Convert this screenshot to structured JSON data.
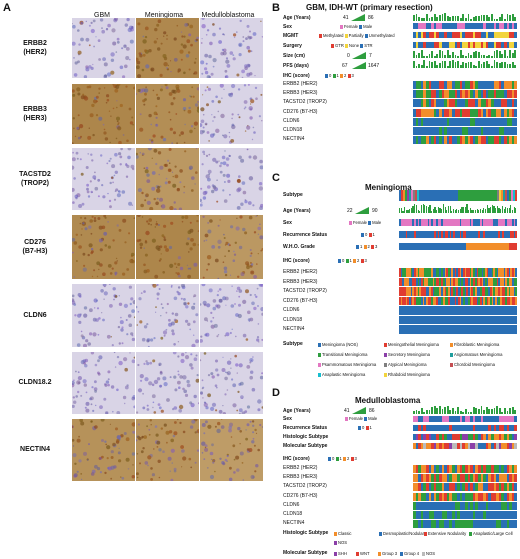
{
  "panel_A": {
    "letter": "A",
    "columns": [
      "GBM",
      "Meningioma",
      "Medulloblastoma"
    ],
    "rows": [
      {
        "line1": "ERBB2",
        "line2": "(HER2)"
      },
      {
        "line1": "ERBB3",
        "line2": "(HER3)"
      },
      {
        "line1": "TACSTD2",
        "line2": "(TROP2)"
      },
      {
        "line1": "CD276",
        "line2": "(B7-H3)"
      },
      {
        "line1": "CLDN6",
        "line2": ""
      },
      {
        "line1": "CLDN18.2",
        "line2": ""
      },
      {
        "line1": "NECTIN4",
        "line2": ""
      }
    ]
  },
  "panel_B": {
    "letter": "B",
    "title": "GBM, IDH-WT (primary resection)",
    "age": {
      "label": "Age (Years)",
      "min": "41",
      "max": "86"
    },
    "sex": {
      "label": "Sex",
      "female": "Female",
      "male": "Male"
    },
    "mgmt": {
      "label": "MGMT",
      "opts": [
        "Methylated",
        "Partially",
        "Unmethylated"
      ]
    },
    "surgery": {
      "label": "Surgery",
      "opts": [
        "GTR",
        "None",
        "STR"
      ]
    },
    "size": {
      "label": "Size (cm)",
      "min": "0",
      "max": "7"
    },
    "pfs": {
      "label": "PFS (days)",
      "min": "67",
      "max": "1647"
    },
    "ihc": {
      "label": "IHC (score)",
      "opts": [
        "0",
        "1",
        "2",
        "3"
      ]
    },
    "genes": [
      "ERBB2 (HER2)",
      "ERBB3 (HER3)",
      "TACSTD2 (TROP2)",
      "CD276 (B7-H3)",
      "CLDN6",
      "CLDN18",
      "NECTIN4"
    ]
  },
  "panel_C": {
    "letter": "C",
    "title": "Meningioma",
    "subtype_label": "Subtype",
    "age": {
      "label": "Age (Years)",
      "min": "22",
      "max": "90"
    },
    "sex": {
      "label": "Sex",
      "female": "Female",
      "male": "Male"
    },
    "recurrence": {
      "label": "Recurrence Status",
      "opts": [
        "0",
        "1"
      ]
    },
    "who": {
      "label": "W.H.O. Grade",
      "opts": [
        "1",
        "2",
        "3"
      ]
    },
    "ihc": {
      "label": "IHC (score)",
      "opts": [
        "0",
        "1",
        "2",
        "3"
      ]
    },
    "genes": [
      "ERBB2 (HER2)",
      "ERBB3 (HER3)",
      "TACSTD2 (TROP2)",
      "CD276 (B7-H3)",
      "CLDN6",
      "CLDN18",
      "NECTIN4"
    ],
    "legend_title": "Subtype",
    "legend": [
      {
        "name": "Meningioma (NOS)",
        "color": "#2a6fb5"
      },
      {
        "name": "Meningothelial Meningioma",
        "color": "#e03c31"
      },
      {
        "name": "Fibroblastic Meningioma",
        "color": "#f28e2b"
      },
      {
        "name": "Transitional Meningioma",
        "color": "#2e9e3e"
      },
      {
        "name": "Secretory Meningioma",
        "color": "#8b3fa8"
      },
      {
        "name": "Angiomatous Meningioma",
        "color": "#1f9e9e"
      },
      {
        "name": "Psammomatous Meningioma",
        "color": "#e377c2"
      },
      {
        "name": "Atypical Meningioma",
        "color": "#7f7f7f"
      },
      {
        "name": "Chordoid Meningioma",
        "color": "#c44e52"
      },
      {
        "name": "Anaplastic Meningioma",
        "color": "#17becf"
      },
      {
        "name": "Rhabdoid Meningioma",
        "color": "#f2d43d"
      }
    ]
  },
  "panel_D": {
    "letter": "D",
    "title": "Medulloblastoma",
    "age": {
      "label": "Age (Years)",
      "min": "41",
      "max": "86"
    },
    "sex": {
      "label": "Sex",
      "female": "Female",
      "male": "Male"
    },
    "recurrence": {
      "label": "Recurrence Status",
      "opts": [
        "0",
        "1"
      ]
    },
    "histologic": {
      "label": "Histologic Subtype"
    },
    "molecular": {
      "label": "Molecular Subtype"
    },
    "ihc": {
      "label": "IHC (score)",
      "opts": [
        "0",
        "1",
        "2",
        "3"
      ]
    },
    "genes": [
      "ERBB2 (HER2)",
      "ERBB3 (HER3)",
      "TACSTD2 (TROP2)",
      "CD276 (B7-H3)",
      "CLDN6",
      "CLDN18",
      "NECTIN4"
    ],
    "hist_legend_title": "Histologic Subtype",
    "hist_legend": [
      {
        "name": "Classic",
        "color": "#f28e2b"
      },
      {
        "name": "Desmoplastic/Nodular",
        "color": "#2a6fb5"
      },
      {
        "name": "Extensive Nodularity",
        "color": "#e03c31"
      },
      {
        "name": "Anaplastic/Large Cell",
        "color": "#2e9e3e"
      },
      {
        "name": "NOS",
        "color": "#8b3fa8"
      }
    ],
    "mol_legend_title": "Molecular Subtype",
    "mol_legend": [
      {
        "name": "SHH",
        "color": "#8b3fa8"
      },
      {
        "name": "WNT",
        "color": "#e03c31"
      },
      {
        "name": "Group 3",
        "color": "#f28e2b"
      },
      {
        "name": "Group 4",
        "color": "#2a6fb5"
      },
      {
        "name": "NOS",
        "color": "#bbbbbb"
      }
    ]
  },
  "colors": {
    "age_green": "#2e9e3e",
    "female": "#e377c2",
    "male": "#2a6fb5",
    "methylated": "#e03c31",
    "partially": "#f2d43d",
    "unmethylated": "#2a6fb5",
    "gtr": "#e03c31",
    "none": "#f2d43d",
    "str": "#2a6fb5",
    "ihc_0": "#2a6fb5",
    "ihc_1": "#2e9e3e",
    "ihc_2": "#f28e2b",
    "ihc_3": "#e03c31",
    "stain_brown": "#b58a4a",
    "stain_blue": "#c9c3de"
  }
}
